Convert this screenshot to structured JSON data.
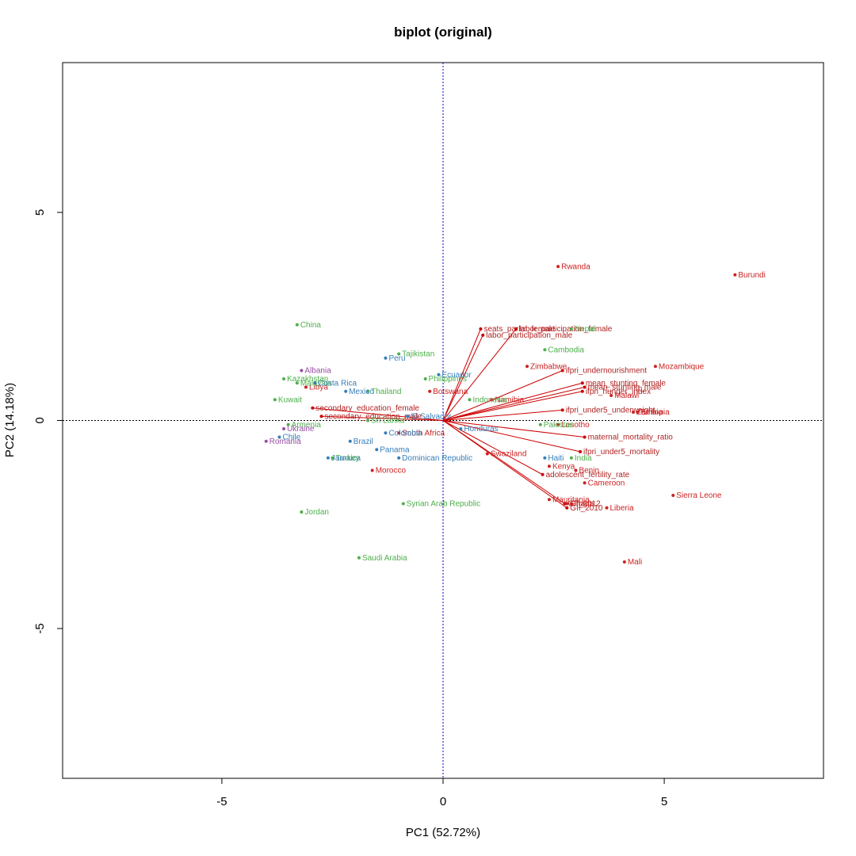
{
  "chart_data": {
    "type": "scatter",
    "subtype": "pca-biplot",
    "title": "biplot (original)",
    "xlabel": "PC1 (52.72%)",
    "ylabel": "PC2 (14.18%)",
    "xlim": [
      -8.6,
      8.6
    ],
    "ylim": [
      -8.6,
      8.6
    ],
    "xticks": [
      -5,
      0,
      5
    ],
    "yticks": [
      -5,
      0,
      5
    ],
    "grid": false,
    "legend": "none",
    "reference_lines": {
      "x": 0,
      "y": 0
    },
    "colors": {
      "red": "#cc2222",
      "green": "#4daf4a",
      "blue": "#377eb8",
      "purple": "#984ea3",
      "arrow": "#cc0000",
      "hline": "#000000",
      "vline": "#0000cc"
    },
    "points": [
      {
        "name": "Burundi",
        "x": 6.6,
        "y": 3.5,
        "group": "red"
      },
      {
        "name": "Rwanda",
        "x": 2.6,
        "y": 3.7,
        "group": "red"
      },
      {
        "name": "Mozambique",
        "x": 4.8,
        "y": 1.3,
        "group": "red"
      },
      {
        "name": "Zimbabwe",
        "x": 1.9,
        "y": 1.3,
        "group": "red"
      },
      {
        "name": "Malawi",
        "x": 3.8,
        "y": 0.6,
        "group": "red"
      },
      {
        "name": "Zambia",
        "x": 4.3,
        "y": 0.2,
        "group": "red"
      },
      {
        "name": "Ethiopia",
        "x": 4.4,
        "y": 0.2,
        "group": "red"
      },
      {
        "name": "Lesotho",
        "x": 2.6,
        "y": -0.1,
        "group": "red"
      },
      {
        "name": "Botswana",
        "x": -0.3,
        "y": 0.7,
        "group": "red"
      },
      {
        "name": "Namibia",
        "x": 1.1,
        "y": 0.5,
        "group": "red"
      },
      {
        "name": "South Africa",
        "x": -1.0,
        "y": -0.3,
        "group": "red"
      },
      {
        "name": "Swaziland",
        "x": 1.0,
        "y": -0.8,
        "group": "red"
      },
      {
        "name": "Kenya",
        "x": 2.4,
        "y": -1.1,
        "group": "red"
      },
      {
        "name": "Benin",
        "x": 3.0,
        "y": -1.2,
        "group": "red"
      },
      {
        "name": "Cameroon",
        "x": 3.2,
        "y": -1.5,
        "group": "red"
      },
      {
        "name": "Sierra Leone",
        "x": 5.2,
        "y": -1.8,
        "group": "red"
      },
      {
        "name": "Liberia",
        "x": 3.7,
        "y": -2.1,
        "group": "red"
      },
      {
        "name": "Mali",
        "x": 4.1,
        "y": -3.4,
        "group": "red"
      },
      {
        "name": "Mauritania",
        "x": 2.4,
        "y": -1.9,
        "group": "red"
      },
      {
        "name": "Ghana",
        "x": 2.8,
        "y": -2.0,
        "group": "red"
      },
      {
        "name": "Togo",
        "x": 2.9,
        "y": -2.0,
        "group": "red"
      },
      {
        "name": "Libya",
        "x": -3.1,
        "y": 0.8,
        "group": "red"
      },
      {
        "name": "Morocco",
        "x": -1.6,
        "y": -1.2,
        "group": "red"
      },
      {
        "name": "China",
        "x": -3.3,
        "y": 2.3,
        "group": "green"
      },
      {
        "name": "Tajikistan",
        "x": -1.0,
        "y": 1.6,
        "group": "green"
      },
      {
        "name": "Cambodia",
        "x": 2.3,
        "y": 1.7,
        "group": "green"
      },
      {
        "name": "Nepal",
        "x": 2.9,
        "y": 2.2,
        "group": "green"
      },
      {
        "name": "Philippines",
        "x": -0.4,
        "y": 1.0,
        "group": "green"
      },
      {
        "name": "Kazakhstan",
        "x": -3.6,
        "y": 1.0,
        "group": "green"
      },
      {
        "name": "Malaysia",
        "x": -3.3,
        "y": 0.9,
        "group": "green"
      },
      {
        "name": "Kuwait",
        "x": -3.8,
        "y": 0.5,
        "group": "green"
      },
      {
        "name": "Thailand",
        "x": -1.7,
        "y": 0.7,
        "group": "green"
      },
      {
        "name": "Indonesia",
        "x": 0.6,
        "y": 0.5,
        "group": "green"
      },
      {
        "name": "Armenia",
        "x": -3.5,
        "y": -0.1,
        "group": "green"
      },
      {
        "name": "Sri Lanka",
        "x": -1.7,
        "y": 0.0,
        "group": "green"
      },
      {
        "name": "Pakistan",
        "x": 2.2,
        "y": -0.1,
        "group": "green"
      },
      {
        "name": "India",
        "x": 2.9,
        "y": -0.9,
        "group": "green"
      },
      {
        "name": "Turkey",
        "x": -2.5,
        "y": -0.9,
        "group": "green"
      },
      {
        "name": "Syrian Arab Republic",
        "x": -0.9,
        "y": -2.0,
        "group": "green"
      },
      {
        "name": "Jordan",
        "x": -3.2,
        "y": -2.2,
        "group": "green"
      },
      {
        "name": "Saudi Arabia",
        "x": -1.9,
        "y": -3.3,
        "group": "green"
      },
      {
        "name": "Peru",
        "x": -1.3,
        "y": 1.5,
        "group": "blue"
      },
      {
        "name": "Costa Rica",
        "x": -2.9,
        "y": 0.9,
        "group": "blue"
      },
      {
        "name": "Mexico",
        "x": -2.2,
        "y": 0.7,
        "group": "blue"
      },
      {
        "name": "Ecuador",
        "x": -0.1,
        "y": 1.1,
        "group": "blue"
      },
      {
        "name": "El Salvador",
        "x": -0.8,
        "y": 0.1,
        "group": "blue"
      },
      {
        "name": "Colombia",
        "x": -1.3,
        "y": -0.3,
        "group": "blue"
      },
      {
        "name": "Brazil",
        "x": -2.1,
        "y": -0.5,
        "group": "blue"
      },
      {
        "name": "Panama",
        "x": -1.5,
        "y": -0.7,
        "group": "blue"
      },
      {
        "name": "Dominican Republic",
        "x": -1.0,
        "y": -0.9,
        "group": "blue"
      },
      {
        "name": "Honduras",
        "x": 0.4,
        "y": -0.2,
        "group": "blue"
      },
      {
        "name": "Haiti",
        "x": 2.3,
        "y": -0.9,
        "group": "blue"
      },
      {
        "name": "Jamaica",
        "x": -2.6,
        "y": -0.9,
        "group": "blue"
      },
      {
        "name": "Chile",
        "x": -3.7,
        "y": -0.4,
        "group": "blue"
      },
      {
        "name": "Albania",
        "x": -3.2,
        "y": 1.2,
        "group": "purple"
      },
      {
        "name": "Ukraine",
        "x": -3.6,
        "y": -0.2,
        "group": "purple"
      },
      {
        "name": "Romania",
        "x": -4.0,
        "y": -0.5,
        "group": "purple"
      }
    ],
    "loadings": [
      {
        "name": "seats_parlm_female",
        "x": 0.85,
        "y": 2.2
      },
      {
        "name": "labor_participation_female",
        "x": 1.65,
        "y": 2.2
      },
      {
        "name": "labor_participation_male",
        "x": 0.9,
        "y": 2.05
      },
      {
        "name": "ifpri_undernourishment",
        "x": 2.7,
        "y": 1.2
      },
      {
        "name": "mean_stunting_female",
        "x": 3.15,
        "y": 0.9
      },
      {
        "name": "mean_stunting_male",
        "x": 3.2,
        "y": 0.8
      },
      {
        "name": "ifpri_hunger_index",
        "x": 3.15,
        "y": 0.7
      },
      {
        "name": "ifpri_under5_underweight",
        "x": 2.7,
        "y": 0.25
      },
      {
        "name": "maternal_mortality_ratio",
        "x": 3.2,
        "y": -0.4
      },
      {
        "name": "ifpri_under5_mortality",
        "x": 3.1,
        "y": -0.75
      },
      {
        "name": "adolescent_fertility_rate",
        "x": 2.25,
        "y": -1.3
      },
      {
        "name": "GII_2012",
        "x": 2.75,
        "y": -2.0
      },
      {
        "name": "GII_2010",
        "x": 2.8,
        "y": -2.1
      },
      {
        "name": "secondary_education_female",
        "x": -2.95,
        "y": 0.3
      },
      {
        "name": "secondary_education_male",
        "x": -2.75,
        "y": 0.1
      }
    ]
  }
}
